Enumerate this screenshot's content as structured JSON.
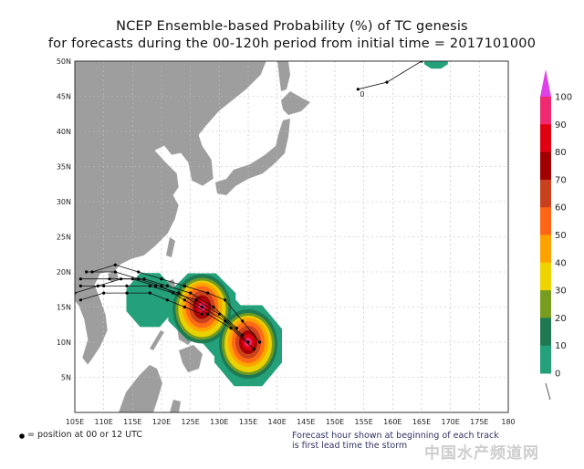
{
  "title_line1": "NCEP Ensemble-based Probability (%) of TC genesis",
  "title_line2": "for forecasts during the 00-120h period from initial time = 2017101000",
  "map": {
    "lon_range": [
      105,
      180
    ],
    "lat_range": [
      0,
      50
    ],
    "lon_labels": [
      "105E",
      "110E",
      "115E",
      "120E",
      "125E",
      "130E",
      "135E",
      "140E",
      "145E",
      "150E",
      "155E",
      "160E",
      "165E",
      "170E",
      "175E",
      "180"
    ],
    "lat_labels": [
      "5N",
      "10N",
      "15N",
      "20N",
      "25N",
      "30N",
      "35N",
      "40N",
      "45N",
      "50N"
    ],
    "grid": true,
    "land_color": "#9e9e9e",
    "genesis_areas": [
      {
        "lon": 127,
        "lat": 15,
        "peak_prob": 90
      },
      {
        "lon": 135,
        "lat": 10,
        "peak_prob": 90
      }
    ],
    "tracks": [
      {
        "label": "",
        "points": [
          [
            135,
            10
          ],
          [
            131,
            13
          ],
          [
            127,
            15
          ],
          [
            123,
            17
          ],
          [
            119,
            18
          ],
          [
            115,
            19
          ],
          [
            111,
            19
          ],
          [
            106,
            19
          ]
        ]
      },
      {
        "label": "",
        "points": [
          [
            134,
            11
          ],
          [
            130,
            14
          ],
          [
            126,
            16
          ],
          [
            122,
            17
          ],
          [
            118,
            18
          ],
          [
            114,
            18
          ],
          [
            110,
            18
          ],
          [
            106,
            18
          ]
        ]
      },
      {
        "label": "",
        "points": [
          [
            136,
            9
          ],
          [
            132,
            12
          ],
          [
            128,
            14
          ],
          [
            124,
            16
          ],
          [
            120,
            18
          ],
          [
            116,
            19
          ],
          [
            112,
            20
          ],
          [
            107,
            20
          ]
        ]
      },
      {
        "label": "",
        "points": [
          [
            133,
            12
          ],
          [
            129,
            15
          ],
          [
            125,
            17
          ],
          [
            121,
            18
          ],
          [
            117,
            19
          ],
          [
            113,
            19
          ],
          [
            109,
            18
          ],
          [
            105,
            17
          ]
        ]
      },
      {
        "label": "",
        "points": [
          [
            137,
            10
          ],
          [
            134,
            13
          ],
          [
            131,
            16
          ],
          [
            128,
            17
          ],
          [
            124,
            18
          ],
          [
            120,
            19
          ],
          [
            116,
            20
          ],
          [
            112,
            21
          ],
          [
            108,
            20
          ]
        ]
      },
      {
        "label": "",
        "points": [
          [
            127,
            14
          ],
          [
            124,
            15
          ],
          [
            121,
            16
          ],
          [
            118,
            17
          ],
          [
            114,
            17
          ],
          [
            110,
            17
          ],
          [
            106,
            16
          ]
        ]
      },
      {
        "label": "0",
        "points": [
          [
            154,
            46
          ],
          [
            159,
            47
          ],
          [
            165,
            50
          ]
        ]
      }
    ]
  },
  "colorbar": {
    "labels": [
      "100",
      "90",
      "80",
      "70",
      "60",
      "50",
      "40",
      "30",
      "20",
      "10",
      "0"
    ],
    "colors": [
      "#f02a70",
      "#e00012",
      "#a00000",
      "#c8401e",
      "#ff6616",
      "#ffa200",
      "#f0d400",
      "#789c1e",
      "#1e7850",
      "#24a07a"
    ],
    "tip_color": "#e040e8"
  },
  "legend_text": "= position at 00 or 12 UTC",
  "footnote_line1": "Forecast hour shown at beginning of each track",
  "footnote_line2": "is first lead time the storm",
  "watermark": "中国水产频道网"
}
